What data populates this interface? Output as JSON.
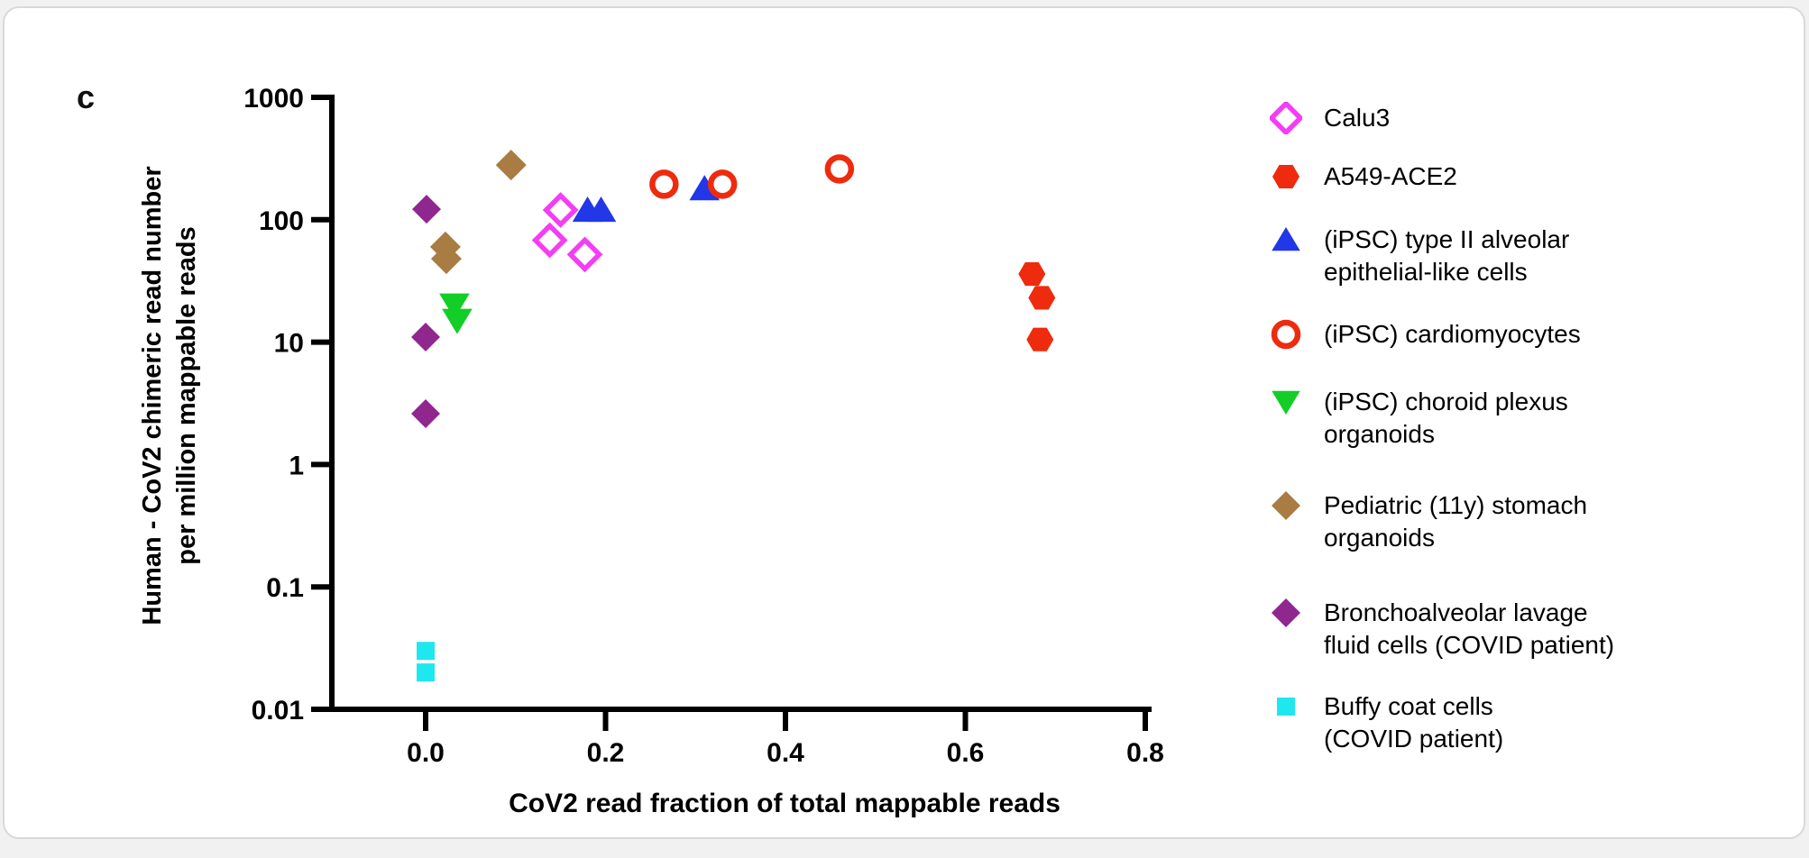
{
  "page": {
    "panel_label": "c"
  },
  "chart_data": {
    "type": "scatter",
    "title": "",
    "xlabel": "CoV2 read fraction of total mappable reads",
    "ylabel_lines": [
      "Human - CoV2 chimeric read number",
      "per million mappable reads"
    ],
    "x_axis": {
      "min": 0,
      "max": 0.8,
      "scale": "linear",
      "ticks": [
        {
          "v": 0.0,
          "label": "0.0"
        },
        {
          "v": 0.2,
          "label": "0.2"
        },
        {
          "v": 0.4,
          "label": "0.4"
        },
        {
          "v": 0.6,
          "label": "0.6"
        },
        {
          "v": 0.8,
          "label": "0.8"
        }
      ]
    },
    "y_axis": {
      "min": 0.01,
      "max": 1000,
      "scale": "log",
      "ticks": [
        {
          "v": 1000,
          "label": "1000"
        },
        {
          "v": 100,
          "label": "100"
        },
        {
          "v": 10,
          "label": "10"
        },
        {
          "v": 1,
          "label": "1"
        },
        {
          "v": 0.1,
          "label": "0.1"
        },
        {
          "v": 0.01,
          "label": "0.01"
        }
      ]
    },
    "grid": false,
    "legend_position": "right",
    "series": [
      {
        "name": "Calu3",
        "legend_lines": [
          "Calu3"
        ],
        "marker": "diamond-open",
        "color": "#F43DF4",
        "size": 15,
        "points": [
          [
            0.15,
            120
          ],
          [
            0.138,
            68
          ],
          [
            0.177,
            52
          ]
        ]
      },
      {
        "name": "A549-ACE2",
        "legend_lines": [
          "A549-ACE2"
        ],
        "marker": "hexagon",
        "color": "#EE2B0E",
        "size": 15,
        "points": [
          [
            0.674,
            36
          ],
          [
            0.685,
            23
          ],
          [
            0.683,
            10.5
          ]
        ]
      },
      {
        "name": "(iPSC) type II alveolar epithelial-like cells",
        "legend_lines": [
          "(iPSC) type II alveolar",
          "epithelial-like cells"
        ],
        "marker": "triangle-up",
        "color": "#2137E8",
        "size": 16,
        "points": [
          [
            0.18,
            120
          ],
          [
            0.195,
            120
          ],
          [
            0.31,
            180
          ]
        ]
      },
      {
        "name": "(iPSC) cardiomyocytes",
        "legend_lines": [
          "(iPSC) cardiomyocytes"
        ],
        "marker": "circle-open",
        "color": "#EE2B0E",
        "size": 13,
        "points": [
          [
            0.265,
            195
          ],
          [
            0.33,
            195
          ],
          [
            0.46,
            260
          ]
        ]
      },
      {
        "name": "(iPSC) choroid plexus organoids",
        "legend_lines": [
          "(iPSC) choroid plexus",
          "organoids"
        ],
        "marker": "triangle-down",
        "color": "#12CE27",
        "size": 16,
        "points": [
          [
            0.032,
            20
          ],
          [
            0.035,
            15
          ]
        ]
      },
      {
        "name": "Pediatric (11y) stomach organoids",
        "legend_lines": [
          "Pediatric (11y) stomach",
          "organoids"
        ],
        "marker": "diamond",
        "color": "#A87C43",
        "size": 16,
        "points": [
          [
            0.095,
            280
          ],
          [
            0.022,
            60
          ],
          [
            0.023,
            48
          ]
        ]
      },
      {
        "name": "Bronchoalveolar lavage fluid cells (COVID patient)",
        "legend_lines": [
          "Bronchoalveolar lavage",
          "fluid cells (COVID patient)"
        ],
        "marker": "diamond",
        "color": "#90278E",
        "size": 15,
        "points": [
          [
            0.001,
            122
          ],
          [
            0.0,
            11
          ],
          [
            0.0,
            2.6
          ]
        ]
      },
      {
        "name": "Buffy coat cells (COVID patient)",
        "legend_lines": [
          "Buffy coat cells",
          "(COVID patient)"
        ],
        "marker": "square",
        "color": "#1FE7EF",
        "size": 10,
        "points": [
          [
            0.0,
            0.03
          ],
          [
            0.0,
            0.02
          ]
        ]
      }
    ]
  }
}
